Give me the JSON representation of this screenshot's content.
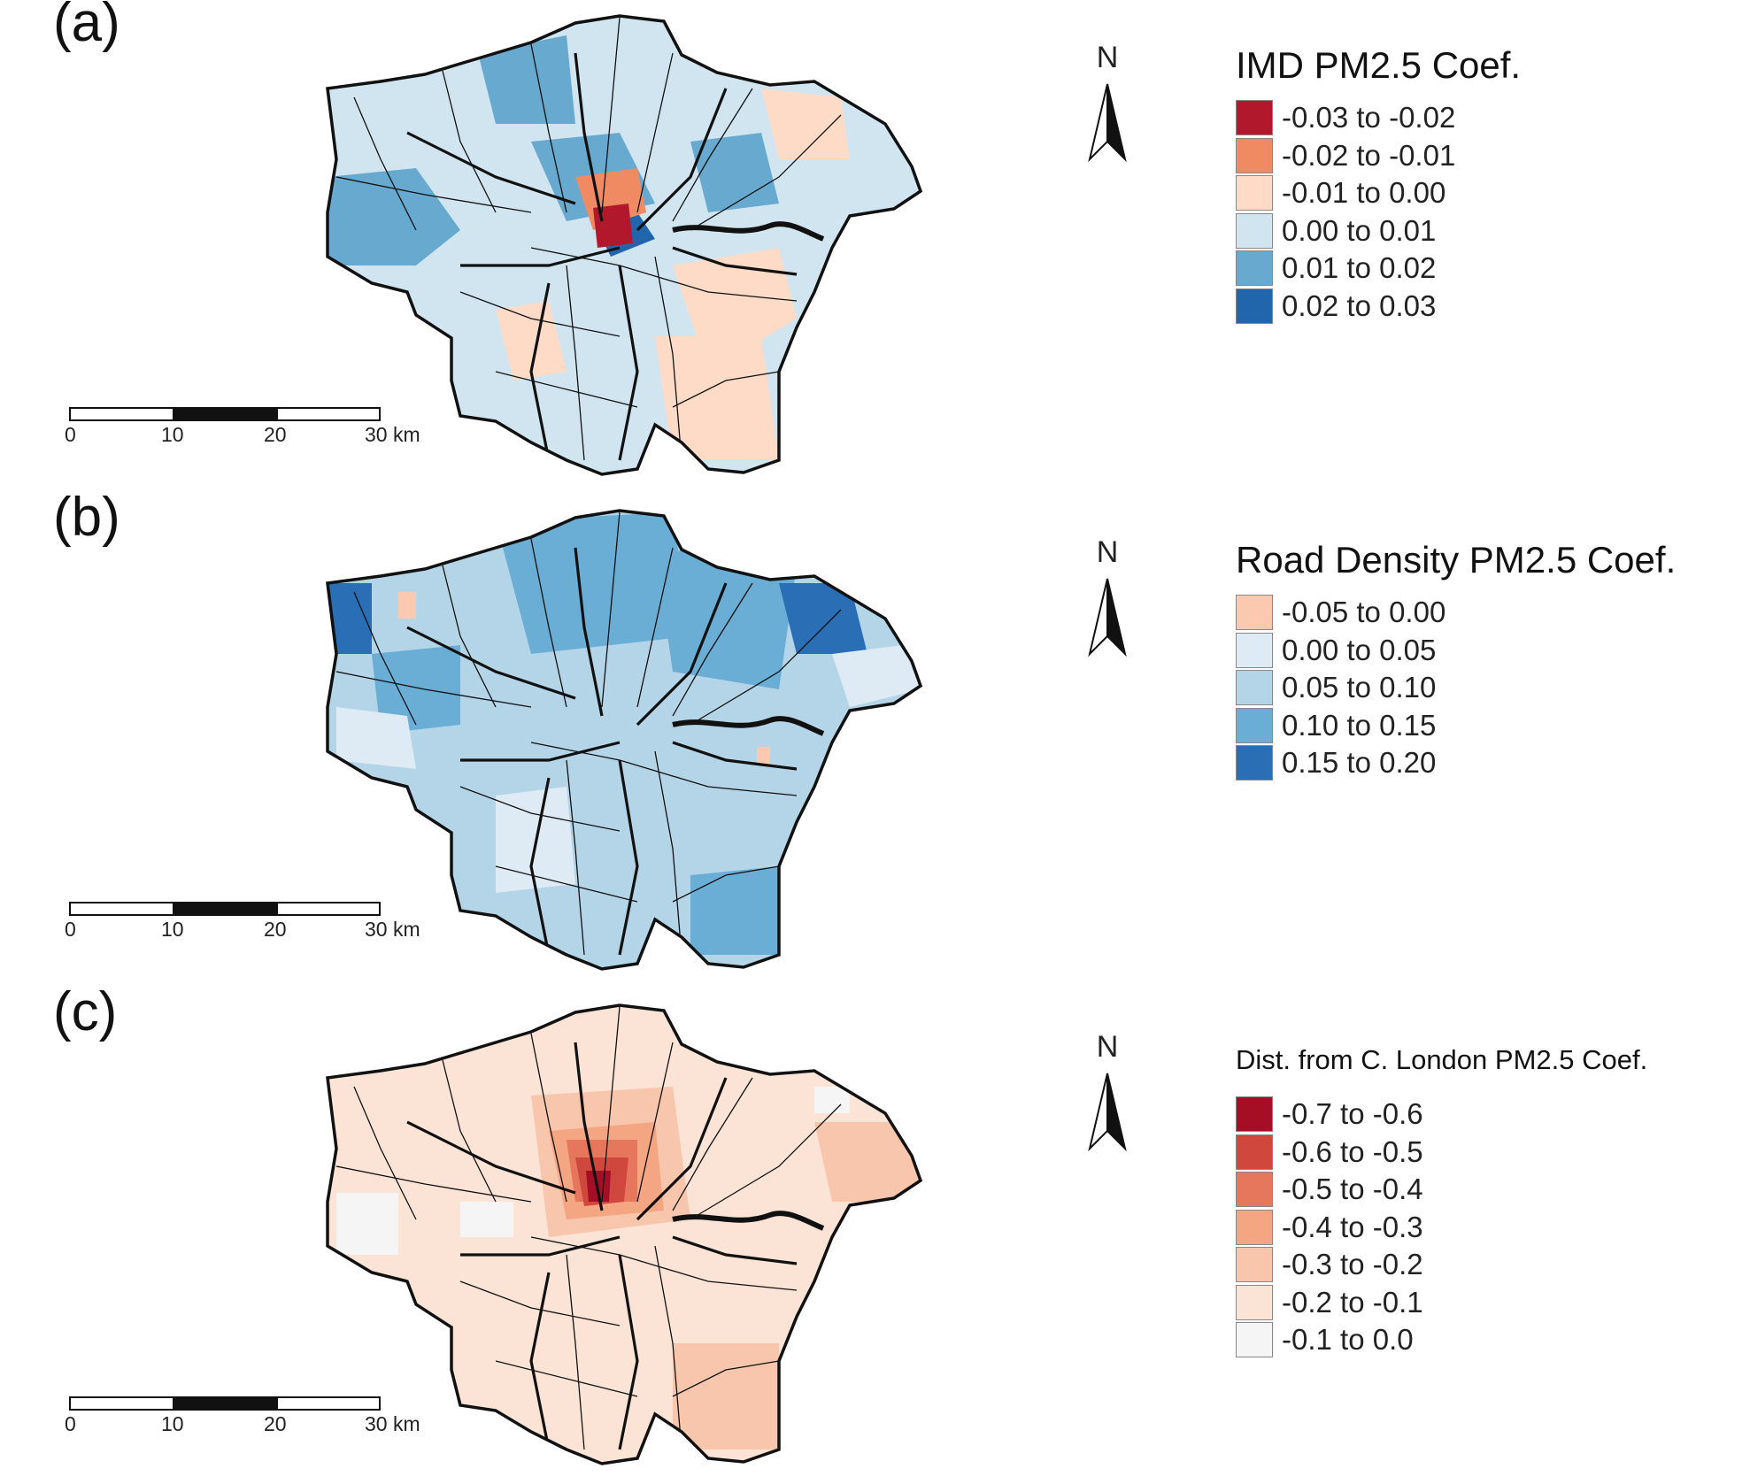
{
  "panels": [
    {
      "label": "(a)",
      "legend_title": "IMD PM2.5 Coef.",
      "legend": [
        {
          "label": "-0.03 to -0.02",
          "color": "#b2182b"
        },
        {
          "label": "-0.02 to -0.01",
          "color": "#ef8a62"
        },
        {
          "label": "-0.01 to 0.00",
          "color": "#fddbc7"
        },
        {
          "label": "0.00 to 0.01",
          "color": "#d1e5f0"
        },
        {
          "label": "0.01 to 0.02",
          "color": "#67a9cf"
        },
        {
          "label": "0.02 to 0.03",
          "color": "#2166ac"
        }
      ],
      "north_label": "N",
      "scale_ticks": [
        "0",
        "10",
        "20",
        "30 km"
      ]
    },
    {
      "label": "(b)",
      "legend_title": "Road Density PM2.5 Coef.",
      "legend": [
        {
          "label": "-0.05 to 0.00",
          "color": "#fbc9b0"
        },
        {
          "label": "0.00 to 0.05",
          "color": "#deebf4"
        },
        {
          "label": "0.05 to 0.10",
          "color": "#b4d4e8"
        },
        {
          "label": "0.10 to 0.15",
          "color": "#6aaed6"
        },
        {
          "label": "0.15 to 0.20",
          "color": "#2a6fb6"
        }
      ],
      "north_label": "N",
      "scale_ticks": [
        "0",
        "10",
        "20",
        "30 km"
      ]
    },
    {
      "label": "(c)",
      "legend_title": "Dist. from C. London PM2.5 Coef.",
      "legend": [
        {
          "label": "-0.7 to -0.6",
          "color": "#a50f25"
        },
        {
          "label": "-0.6 to -0.5",
          "color": "#d0473e"
        },
        {
          "label": "-0.5 to -0.4",
          "color": "#e7775c"
        },
        {
          "label": "-0.4 to -0.3",
          "color": "#f4a582"
        },
        {
          "label": "-0.3 to -0.2",
          "color": "#f8c6ac"
        },
        {
          "label": "-0.2 to -0.1",
          "color": "#fbe3d6"
        },
        {
          "label": "-0.1 to 0.0",
          "color": "#f5f5f5"
        }
      ],
      "north_label": "N",
      "scale_ticks": [
        "0",
        "10",
        "20",
        "30 km"
      ]
    }
  ]
}
